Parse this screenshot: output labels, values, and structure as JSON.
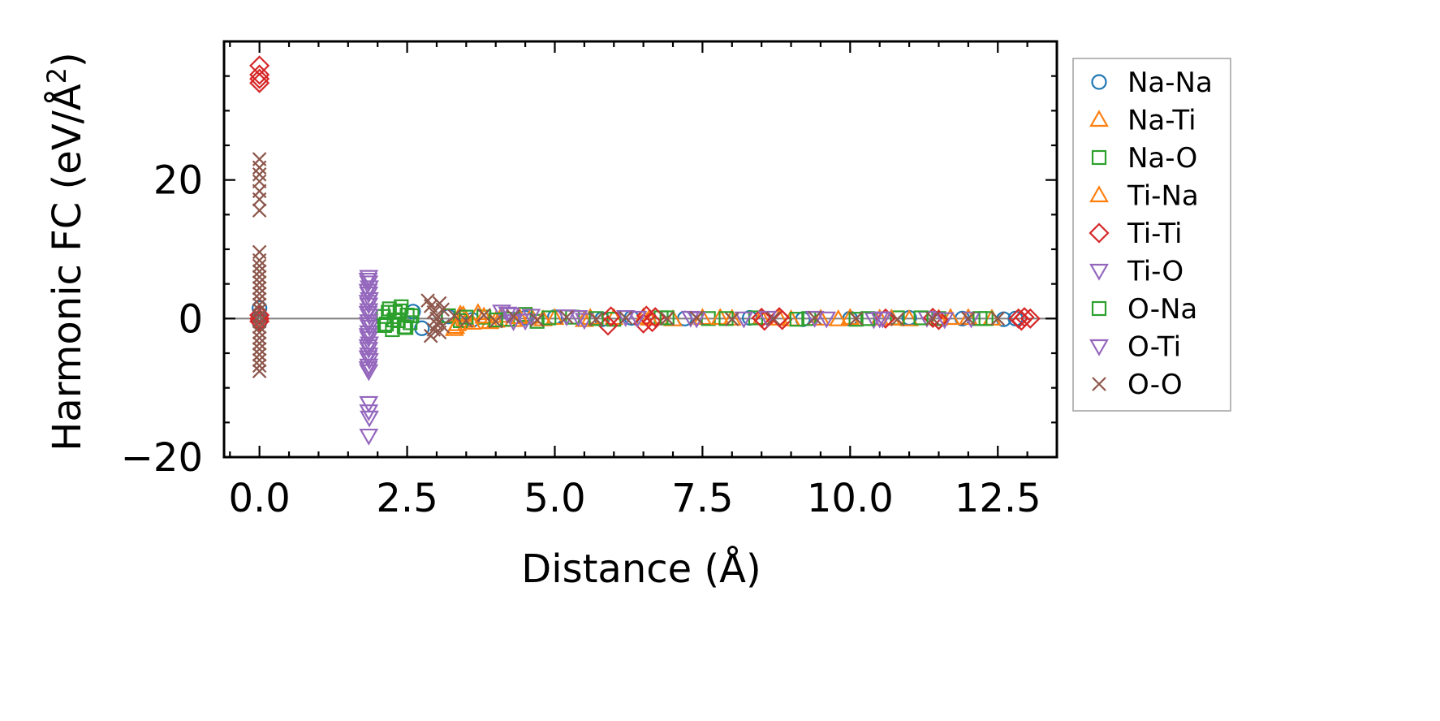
{
  "chart_data": {
    "type": "scatter",
    "title": "",
    "xlabel": "Distance (Å)",
    "ylabel_main": "Harmonic FC (eV/Å",
    "ylabel_sup": "2",
    "ylabel_close": ")",
    "xlim": [
      -0.6,
      13.5
    ],
    "ylim": [
      -20,
      40
    ],
    "xticks": [
      0.0,
      2.5,
      5.0,
      7.5,
      10.0,
      12.5
    ],
    "xtick_labels": [
      "0.0",
      "2.5",
      "5.0",
      "7.5",
      "10.0",
      "12.5"
    ],
    "yticks": [
      -20,
      0,
      20
    ],
    "ytick_labels": [
      "−20",
      "0",
      "20"
    ],
    "grid": false,
    "legend_position": "outside-right",
    "zero_line": true,
    "series": [
      {
        "name": "Na-Na",
        "marker": "circle",
        "color": "#1f77b4",
        "points": [
          [
            0.0,
            0.5
          ],
          [
            0.0,
            -0.5
          ],
          [
            0.0,
            1.5
          ],
          [
            2.6,
            1.0
          ],
          [
            2.75,
            -1.4
          ],
          [
            3.2,
            0.3
          ],
          [
            3.6,
            -0.2
          ],
          [
            4.5,
            0.1
          ],
          [
            5.0,
            0.2
          ],
          [
            5.8,
            -0.1
          ],
          [
            6.3,
            0.1
          ],
          [
            7.2,
            0.0
          ],
          [
            8.3,
            0.1
          ],
          [
            9.2,
            -0.1
          ],
          [
            10.0,
            0.0
          ],
          [
            11.0,
            0.1
          ],
          [
            11.9,
            0.0
          ],
          [
            12.6,
            -0.1
          ],
          [
            12.8,
            0.0
          ]
        ]
      },
      {
        "name": "Na-Ti",
        "marker": "triangle-up",
        "color": "#ff7f0e",
        "points": [
          [
            3.3,
            -1.5
          ],
          [
            3.35,
            -0.8
          ],
          [
            3.4,
            0.6
          ],
          [
            3.5,
            -0.3
          ],
          [
            3.7,
            0.8
          ],
          [
            3.9,
            -0.5
          ],
          [
            4.1,
            0.4
          ],
          [
            4.3,
            -0.2
          ],
          [
            4.6,
            0.3
          ],
          [
            5.0,
            0.1
          ],
          [
            5.5,
            -0.2
          ],
          [
            6.0,
            0.1
          ],
          [
            6.5,
            0.2
          ],
          [
            7.0,
            -0.1
          ],
          [
            7.5,
            0.1
          ],
          [
            8.0,
            0.0
          ],
          [
            8.5,
            0.1
          ],
          [
            9.0,
            -0.1
          ],
          [
            9.5,
            0.0
          ],
          [
            10.0,
            0.1
          ],
          [
            10.5,
            0.0
          ],
          [
            11.0,
            -0.1
          ],
          [
            11.5,
            0.0
          ],
          [
            12.0,
            0.1
          ],
          [
            12.4,
            0.0
          ]
        ]
      },
      {
        "name": "Na-O",
        "marker": "square",
        "color": "#2ca02c",
        "points": [
          [
            2.1,
            0.3
          ],
          [
            2.15,
            -0.8
          ],
          [
            2.2,
            1.4
          ],
          [
            2.25,
            -1.6
          ],
          [
            2.3,
            0.9
          ],
          [
            2.35,
            -0.3
          ],
          [
            2.4,
            1.7
          ],
          [
            2.45,
            -1.2
          ],
          [
            2.5,
            0.5
          ],
          [
            2.55,
            -0.6
          ],
          [
            3.2,
            0.4
          ],
          [
            3.4,
            -0.3
          ],
          [
            3.8,
            0.2
          ],
          [
            4.2,
            -0.1
          ],
          [
            4.5,
            0.6
          ],
          [
            4.7,
            -0.4
          ],
          [
            5.3,
            0.2
          ],
          [
            6.0,
            -0.1
          ],
          [
            6.8,
            0.1
          ],
          [
            7.6,
            0.0
          ],
          [
            8.4,
            0.1
          ],
          [
            9.3,
            0.0
          ],
          [
            10.1,
            -0.1
          ],
          [
            10.8,
            0.1
          ],
          [
            11.5,
            0.0
          ],
          [
            12.3,
            0.0
          ]
        ]
      },
      {
        "name": "Ti-Na",
        "marker": "triangle-up",
        "color": "#ff7f0e",
        "points": [
          [
            3.32,
            -1.2
          ],
          [
            3.45,
            0.5
          ],
          [
            3.6,
            -0.6
          ],
          [
            3.8,
            0.3
          ],
          [
            4.0,
            -0.3
          ],
          [
            4.4,
            0.2
          ],
          [
            4.8,
            -0.1
          ],
          [
            5.6,
            0.1
          ],
          [
            6.6,
            0.0
          ],
          [
            7.8,
            0.1
          ],
          [
            8.8,
            0.0
          ],
          [
            9.8,
            -0.1
          ],
          [
            10.7,
            0.0
          ],
          [
            11.7,
            0.1
          ]
        ]
      },
      {
        "name": "Ti-Ti",
        "marker": "diamond",
        "color": "#d62728",
        "points": [
          [
            0.0,
            36.5
          ],
          [
            0.0,
            35.2
          ],
          [
            0.0,
            34.6
          ],
          [
            0.0,
            34.0
          ],
          [
            0.0,
            0.5
          ],
          [
            0.0,
            0.0
          ],
          [
            0.0,
            -0.4
          ],
          [
            5.9,
            -1.0
          ],
          [
            5.95,
            0.3
          ],
          [
            6.5,
            -0.7
          ],
          [
            6.55,
            0.4
          ],
          [
            6.65,
            -0.5
          ],
          [
            6.7,
            0.2
          ],
          [
            8.5,
            0.1
          ],
          [
            8.55,
            -0.3
          ],
          [
            8.8,
            0.2
          ],
          [
            8.85,
            -0.2
          ],
          [
            10.6,
            0.0
          ],
          [
            11.4,
            0.1
          ],
          [
            11.5,
            -0.2
          ],
          [
            12.85,
            0.0
          ],
          [
            12.9,
            -0.3
          ],
          [
            12.95,
            0.2
          ],
          [
            13.05,
            0.0
          ]
        ]
      },
      {
        "name": "Ti-O",
        "marker": "triangle-down",
        "color": "#9467bd",
        "points": [
          [
            1.85,
            6.0
          ],
          [
            1.85,
            5.2
          ],
          [
            1.86,
            4.5
          ],
          [
            1.85,
            3.6
          ],
          [
            1.86,
            2.8
          ],
          [
            1.85,
            2.0
          ],
          [
            1.85,
            1.2
          ],
          [
            1.86,
            0.4
          ],
          [
            1.85,
            -0.4
          ],
          [
            1.86,
            -1.2
          ],
          [
            1.85,
            -2.0
          ],
          [
            1.85,
            -2.8
          ],
          [
            1.86,
            -3.6
          ],
          [
            1.85,
            -4.4
          ],
          [
            1.85,
            -5.2
          ],
          [
            1.86,
            -6.0
          ],
          [
            1.85,
            -6.8
          ],
          [
            1.85,
            -7.6
          ],
          [
            1.85,
            -12.2
          ],
          [
            1.85,
            -13.4
          ],
          [
            1.86,
            -14.3
          ],
          [
            1.85,
            -16.9
          ],
          [
            4.1,
            1.0
          ],
          [
            4.2,
            0.7
          ],
          [
            4.3,
            -0.4
          ],
          [
            4.6,
            0.4
          ],
          [
            5.2,
            0.3
          ],
          [
            5.5,
            -0.2
          ],
          [
            6.2,
            0.2
          ],
          [
            7.3,
            0.1
          ],
          [
            8.2,
            0.0
          ],
          [
            9.4,
            0.1
          ],
          [
            10.4,
            -0.1
          ],
          [
            10.55,
            0.0
          ],
          [
            11.3,
            0.1
          ],
          [
            12.05,
            0.0
          ]
        ]
      },
      {
        "name": "O-Na",
        "marker": "square",
        "color": "#2ca02c",
        "points": [
          [
            2.12,
            -1.0
          ],
          [
            2.18,
            0.9
          ],
          [
            2.28,
            -0.2
          ],
          [
            2.38,
            1.1
          ],
          [
            2.48,
            -1.3
          ],
          [
            2.58,
            0.4
          ],
          [
            3.5,
            0.2
          ],
          [
            4.0,
            -0.2
          ],
          [
            4.9,
            0.1
          ],
          [
            5.7,
            0.0
          ],
          [
            6.9,
            0.1
          ],
          [
            7.9,
            0.0
          ],
          [
            9.1,
            -0.1
          ],
          [
            10.3,
            0.0
          ],
          [
            11.2,
            0.1
          ],
          [
            12.2,
            0.0
          ]
        ]
      },
      {
        "name": "O-Ti",
        "marker": "triangle-down",
        "color": "#9467bd",
        "points": [
          [
            1.84,
            5.6
          ],
          [
            1.84,
            4.0
          ],
          [
            1.84,
            2.4
          ],
          [
            1.84,
            0.8
          ],
          [
            1.84,
            -0.8
          ],
          [
            1.84,
            -2.4
          ],
          [
            1.84,
            -4.0
          ],
          [
            1.84,
            -5.6
          ],
          [
            1.84,
            -7.2
          ],
          [
            4.25,
            0.6
          ],
          [
            4.5,
            -0.3
          ],
          [
            5.4,
            0.2
          ],
          [
            6.4,
            0.1
          ],
          [
            7.4,
            0.0
          ],
          [
            8.6,
            0.1
          ],
          [
            9.6,
            0.0
          ],
          [
            10.5,
            0.0
          ],
          [
            11.6,
            -0.1
          ]
        ]
      },
      {
        "name": "O-O",
        "marker": "x",
        "color": "#8c564b",
        "points": [
          [
            0.0,
            23.0
          ],
          [
            0.0,
            21.8
          ],
          [
            0.0,
            20.8
          ],
          [
            0.0,
            19.8
          ],
          [
            0.0,
            18.4
          ],
          [
            0.0,
            17.2
          ],
          [
            0.0,
            15.6
          ],
          [
            0.0,
            9.6
          ],
          [
            0.0,
            8.4
          ],
          [
            0.0,
            7.6
          ],
          [
            0.0,
            6.8
          ],
          [
            0.0,
            6.0
          ],
          [
            0.0,
            5.2
          ],
          [
            0.0,
            4.4
          ],
          [
            0.0,
            3.6
          ],
          [
            0.0,
            2.8
          ],
          [
            0.0,
            2.0
          ],
          [
            0.0,
            1.2
          ],
          [
            0.0,
            0.4
          ],
          [
            0.0,
            -0.4
          ],
          [
            0.0,
            -1.2
          ],
          [
            0.0,
            -2.0
          ],
          [
            0.0,
            -2.8
          ],
          [
            0.0,
            -3.6
          ],
          [
            0.0,
            -4.4
          ],
          [
            0.0,
            -5.2
          ],
          [
            0.0,
            -6.0
          ],
          [
            0.0,
            -6.8
          ],
          [
            0.0,
            -7.6
          ],
          [
            2.85,
            2.6
          ],
          [
            2.9,
            -2.5
          ],
          [
            2.9,
            1.8
          ],
          [
            2.95,
            -1.6
          ],
          [
            2.95,
            0.9
          ],
          [
            3.0,
            -0.8
          ],
          [
            3.0,
            0.0
          ],
          [
            3.05,
            2.2
          ],
          [
            3.05,
            -2.0
          ],
          [
            3.1,
            1.3
          ],
          [
            3.1,
            -1.1
          ],
          [
            3.3,
            0.4
          ],
          [
            3.5,
            -0.3
          ],
          [
            3.8,
            0.5
          ],
          [
            4.0,
            -0.4
          ],
          [
            4.3,
            0.3
          ],
          [
            4.7,
            -0.2
          ],
          [
            5.2,
            0.2
          ],
          [
            5.7,
            -0.1
          ],
          [
            6.2,
            0.1
          ],
          [
            6.9,
            0.0
          ],
          [
            7.4,
            0.1
          ],
          [
            8.0,
            -0.1
          ],
          [
            8.7,
            0.0
          ],
          [
            9.4,
            0.1
          ],
          [
            10.1,
            0.0
          ],
          [
            10.8,
            -0.1
          ],
          [
            11.4,
            0.0
          ],
          [
            12.0,
            0.0
          ],
          [
            12.5,
            0.0
          ]
        ]
      }
    ]
  }
}
